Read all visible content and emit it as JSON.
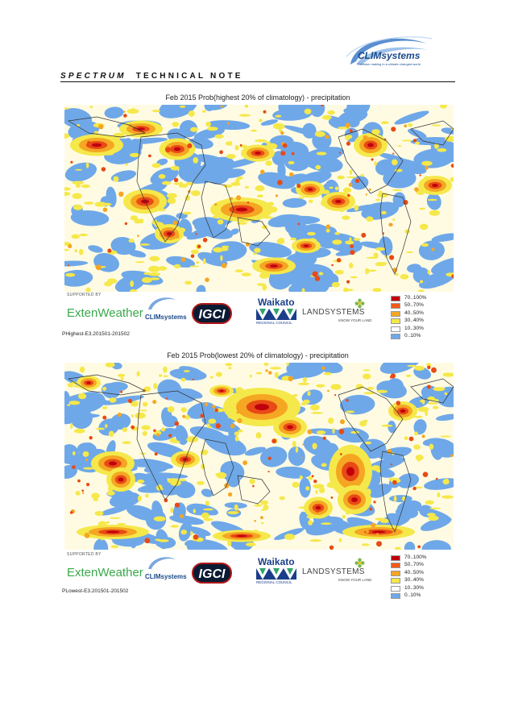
{
  "header": {
    "title_italic": "SPECTRUM",
    "title_rest": "TECHNICAL NOTE",
    "logo_name": "CLIMsystems",
    "logo_tagline": "Decision making in a climate changed world"
  },
  "panels": [
    {
      "title": "Feb 2015 Prob(highest 20% of climatology) - precipitation",
      "supported_by": "SUPPORTED BY",
      "file_label": "PHighest-E3.201501-201502"
    },
    {
      "title": "Feb 2015 Prob(lowest 20% of climatology) - precipitation",
      "supported_by": "SUPPORTED BY",
      "file_label": "PLowest-E3.201501-201502"
    }
  ],
  "sponsors": {
    "extenweather": "ExtenWeather",
    "climsystems": "CLIMsystems",
    "igci": "IGCI",
    "waikato": "Waikato",
    "waikato_sub": "REGIONAL COUNCIL",
    "landsystems": "LANDSYSTEMS",
    "landsystems_sub": "KNOW YOUR LAND"
  },
  "legend": [
    {
      "label": "70..100%",
      "color": "#c0000e"
    },
    {
      "label": "50..70%",
      "color": "#f05a1a"
    },
    {
      "label": "40..50%",
      "color": "#f5a623"
    },
    {
      "label": "30..40%",
      "color": "#f5e84a"
    },
    {
      "label": "10..30%",
      "color": "#ffffff"
    },
    {
      "label": "0..10%",
      "color": "#6fa8e8"
    }
  ],
  "colors": {
    "background": "#fffbe3",
    "low": "#6fa8e8",
    "yellow": "#f5e84a",
    "orange": "#f5a623",
    "red": "#e84a16",
    "darkred": "#c0000e",
    "coast": "#333333"
  }
}
